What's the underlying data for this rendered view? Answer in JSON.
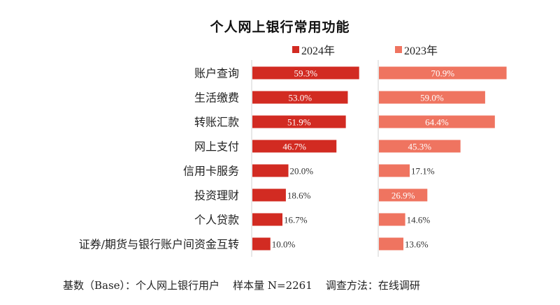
{
  "chart_data": {
    "type": "bar",
    "orientation": "horizontal",
    "title": "个人网上银行常用功能",
    "categories": [
      "账户查询",
      "生活缴费",
      "转账汇款",
      "网上支付",
      "信用卡服务",
      "投资理财",
      "个人贷款",
      "证券/期货与银行账户间资金互转"
    ],
    "series": [
      {
        "name": "2024年",
        "color": "#d22b22",
        "values": [
          59.3,
          53.0,
          51.9,
          46.7,
          20.0,
          18.6,
          16.7,
          10.0
        ],
        "labels": [
          "59.3%",
          "53.0%",
          "51.9%",
          "46.7%",
          "20.0%",
          "18.6%",
          "16.7%",
          "10.0%"
        ]
      },
      {
        "name": "2023年",
        "color": "#ef7460",
        "values": [
          70.9,
          59.0,
          64.4,
          45.3,
          17.1,
          26.9,
          14.6,
          13.6
        ],
        "labels": [
          "70.9%",
          "59.0%",
          "64.4%",
          "45.3%",
          "17.1%",
          "26.9%",
          "14.6%",
          "13.6%"
        ]
      }
    ],
    "xlabel": "",
    "ylabel": "",
    "xlim": [
      0,
      100
    ],
    "unit": "%",
    "grid": false,
    "legend_position": "top",
    "footnote": "基数（Base）：个人网上银行用户    样本量 N=2261    调查方法：在线调研"
  }
}
